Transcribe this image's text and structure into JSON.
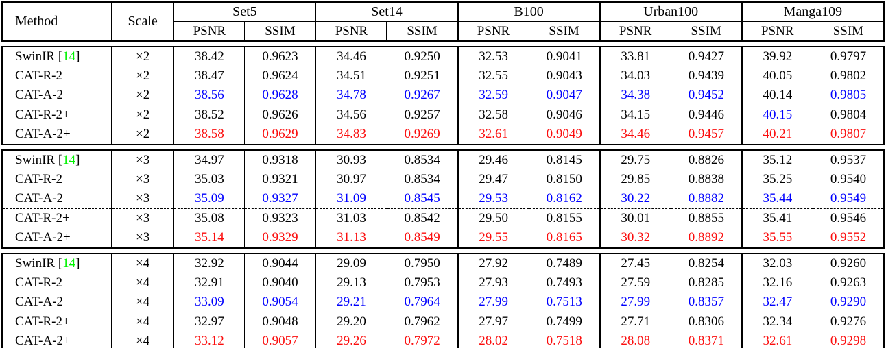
{
  "table": {
    "colors": {
      "best": "#fb0d0d",
      "second_best": "#0000fe",
      "citation_green": "#00f300",
      "text": "#000000",
      "border": "#000000"
    },
    "col_headers": {
      "method": "Method",
      "scale": "Scale",
      "datasets": [
        "Set5",
        "Set14",
        "B100",
        "Urban100",
        "Manga109"
      ],
      "metrics": [
        "PSNR",
        "SSIM"
      ]
    },
    "citation": {
      "open": "[",
      "num": "14",
      "close": "]"
    },
    "groups": [
      {
        "scale": "×2",
        "rows": [
          {
            "method": "SwinIR",
            "has_citation": true,
            "dashed_above": false,
            "values": [
              "38.42",
              "0.9623",
              "34.46",
              "0.9250",
              "32.53",
              "0.9041",
              "33.81",
              "0.9427",
              "39.92",
              "0.9797"
            ],
            "colors": [
              "k",
              "k",
              "k",
              "k",
              "k",
              "k",
              "k",
              "k",
              "k",
              "k"
            ]
          },
          {
            "method": "CAT-R-2",
            "has_citation": false,
            "dashed_above": false,
            "values": [
              "38.47",
              "0.9624",
              "34.51",
              "0.9251",
              "32.55",
              "0.9043",
              "34.03",
              "0.9439",
              "40.05",
              "0.9802"
            ],
            "colors": [
              "k",
              "k",
              "k",
              "k",
              "k",
              "k",
              "k",
              "k",
              "k",
              "k"
            ]
          },
          {
            "method": "CAT-A-2",
            "has_citation": false,
            "dashed_above": false,
            "values": [
              "38.56",
              "0.9628",
              "34.78",
              "0.9267",
              "32.59",
              "0.9047",
              "34.38",
              "0.9452",
              "40.14",
              "0.9805"
            ],
            "colors": [
              "b",
              "b",
              "b",
              "b",
              "b",
              "b",
              "b",
              "b",
              "k",
              "b"
            ]
          },
          {
            "method": "CAT-R-2+",
            "has_citation": false,
            "dashed_above": true,
            "values": [
              "38.52",
              "0.9626",
              "34.56",
              "0.9257",
              "32.58",
              "0.9046",
              "34.15",
              "0.9446",
              "40.15",
              "0.9804"
            ],
            "colors": [
              "k",
              "k",
              "k",
              "k",
              "k",
              "k",
              "k",
              "k",
              "b",
              "k"
            ]
          },
          {
            "method": "CAT-A-2+",
            "has_citation": false,
            "dashed_above": false,
            "values": [
              "38.58",
              "0.9629",
              "34.83",
              "0.9269",
              "32.61",
              "0.9049",
              "34.46",
              "0.9457",
              "40.21",
              "0.9807"
            ],
            "colors": [
              "r",
              "r",
              "r",
              "r",
              "r",
              "r",
              "r",
              "r",
              "r",
              "r"
            ]
          }
        ]
      },
      {
        "scale": "×3",
        "rows": [
          {
            "method": "SwinIR",
            "has_citation": true,
            "dashed_above": false,
            "values": [
              "34.97",
              "0.9318",
              "30.93",
              "0.8534",
              "29.46",
              "0.8145",
              "29.75",
              "0.8826",
              "35.12",
              "0.9537"
            ],
            "colors": [
              "k",
              "k",
              "k",
              "k",
              "k",
              "k",
              "k",
              "k",
              "k",
              "k"
            ]
          },
          {
            "method": "CAT-R-2",
            "has_citation": false,
            "dashed_above": false,
            "values": [
              "35.03",
              "0.9321",
              "30.97",
              "0.8534",
              "29.47",
              "0.8150",
              "29.85",
              "0.8838",
              "35.25",
              "0.9540"
            ],
            "colors": [
              "k",
              "k",
              "k",
              "k",
              "k",
              "k",
              "k",
              "k",
              "k",
              "k"
            ]
          },
          {
            "method": "CAT-A-2",
            "has_citation": false,
            "dashed_above": false,
            "values": [
              "35.09",
              "0.9327",
              "31.09",
              "0.8545",
              "29.53",
              "0.8162",
              "30.22",
              "0.8882",
              "35.44",
              "0.9549"
            ],
            "colors": [
              "b",
              "b",
              "b",
              "b",
              "b",
              "b",
              "b",
              "b",
              "b",
              "b"
            ]
          },
          {
            "method": "CAT-R-2+",
            "has_citation": false,
            "dashed_above": true,
            "values": [
              "35.08",
              "0.9323",
              "31.03",
              "0.8542",
              "29.50",
              "0.8155",
              "30.01",
              "0.8855",
              "35.41",
              "0.9546"
            ],
            "colors": [
              "k",
              "k",
              "k",
              "k",
              "k",
              "k",
              "k",
              "k",
              "k",
              "k"
            ]
          },
          {
            "method": "CAT-A-2+",
            "has_citation": false,
            "dashed_above": false,
            "values": [
              "35.14",
              "0.9329",
              "31.13",
              "0.8549",
              "29.55",
              "0.8165",
              "30.32",
              "0.8892",
              "35.55",
              "0.9552"
            ],
            "colors": [
              "r",
              "r",
              "r",
              "r",
              "r",
              "r",
              "r",
              "r",
              "r",
              "r"
            ]
          }
        ]
      },
      {
        "scale": "×4",
        "rows": [
          {
            "method": "SwinIR",
            "has_citation": true,
            "dashed_above": false,
            "values": [
              "32.92",
              "0.9044",
              "29.09",
              "0.7950",
              "27.92",
              "0.7489",
              "27.45",
              "0.8254",
              "32.03",
              "0.9260"
            ],
            "colors": [
              "k",
              "k",
              "k",
              "k",
              "k",
              "k",
              "k",
              "k",
              "k",
              "k"
            ]
          },
          {
            "method": "CAT-R-2",
            "has_citation": false,
            "dashed_above": false,
            "values": [
              "32.91",
              "0.9040",
              "29.13",
              "0.7953",
              "27.93",
              "0.7493",
              "27.59",
              "0.8285",
              "32.16",
              "0.9263"
            ],
            "colors": [
              "k",
              "k",
              "k",
              "k",
              "k",
              "k",
              "k",
              "k",
              "k",
              "k"
            ]
          },
          {
            "method": "CAT-A-2",
            "has_citation": false,
            "dashed_above": false,
            "values": [
              "33.09",
              "0.9054",
              "29.21",
              "0.7964",
              "27.99",
              "0.7513",
              "27.99",
              "0.8357",
              "32.47",
              "0.9290"
            ],
            "colors": [
              "b",
              "b",
              "b",
              "b",
              "b",
              "b",
              "b",
              "b",
              "b",
              "b"
            ]
          },
          {
            "method": "CAT-R-2+",
            "has_citation": false,
            "dashed_above": true,
            "values": [
              "32.97",
              "0.9048",
              "29.20",
              "0.7962",
              "27.97",
              "0.7499",
              "27.71",
              "0.8306",
              "32.34",
              "0.9276"
            ],
            "colors": [
              "k",
              "k",
              "k",
              "k",
              "k",
              "k",
              "k",
              "k",
              "k",
              "k"
            ]
          },
          {
            "method": "CAT-A-2+",
            "has_citation": false,
            "dashed_above": false,
            "values": [
              "33.12",
              "0.9057",
              "29.26",
              "0.7972",
              "28.02",
              "0.7518",
              "28.08",
              "0.8371",
              "32.61",
              "0.9298"
            ],
            "colors": [
              "r",
              "r",
              "r",
              "r",
              "r",
              "r",
              "r",
              "r",
              "r",
              "r"
            ]
          }
        ]
      }
    ]
  }
}
